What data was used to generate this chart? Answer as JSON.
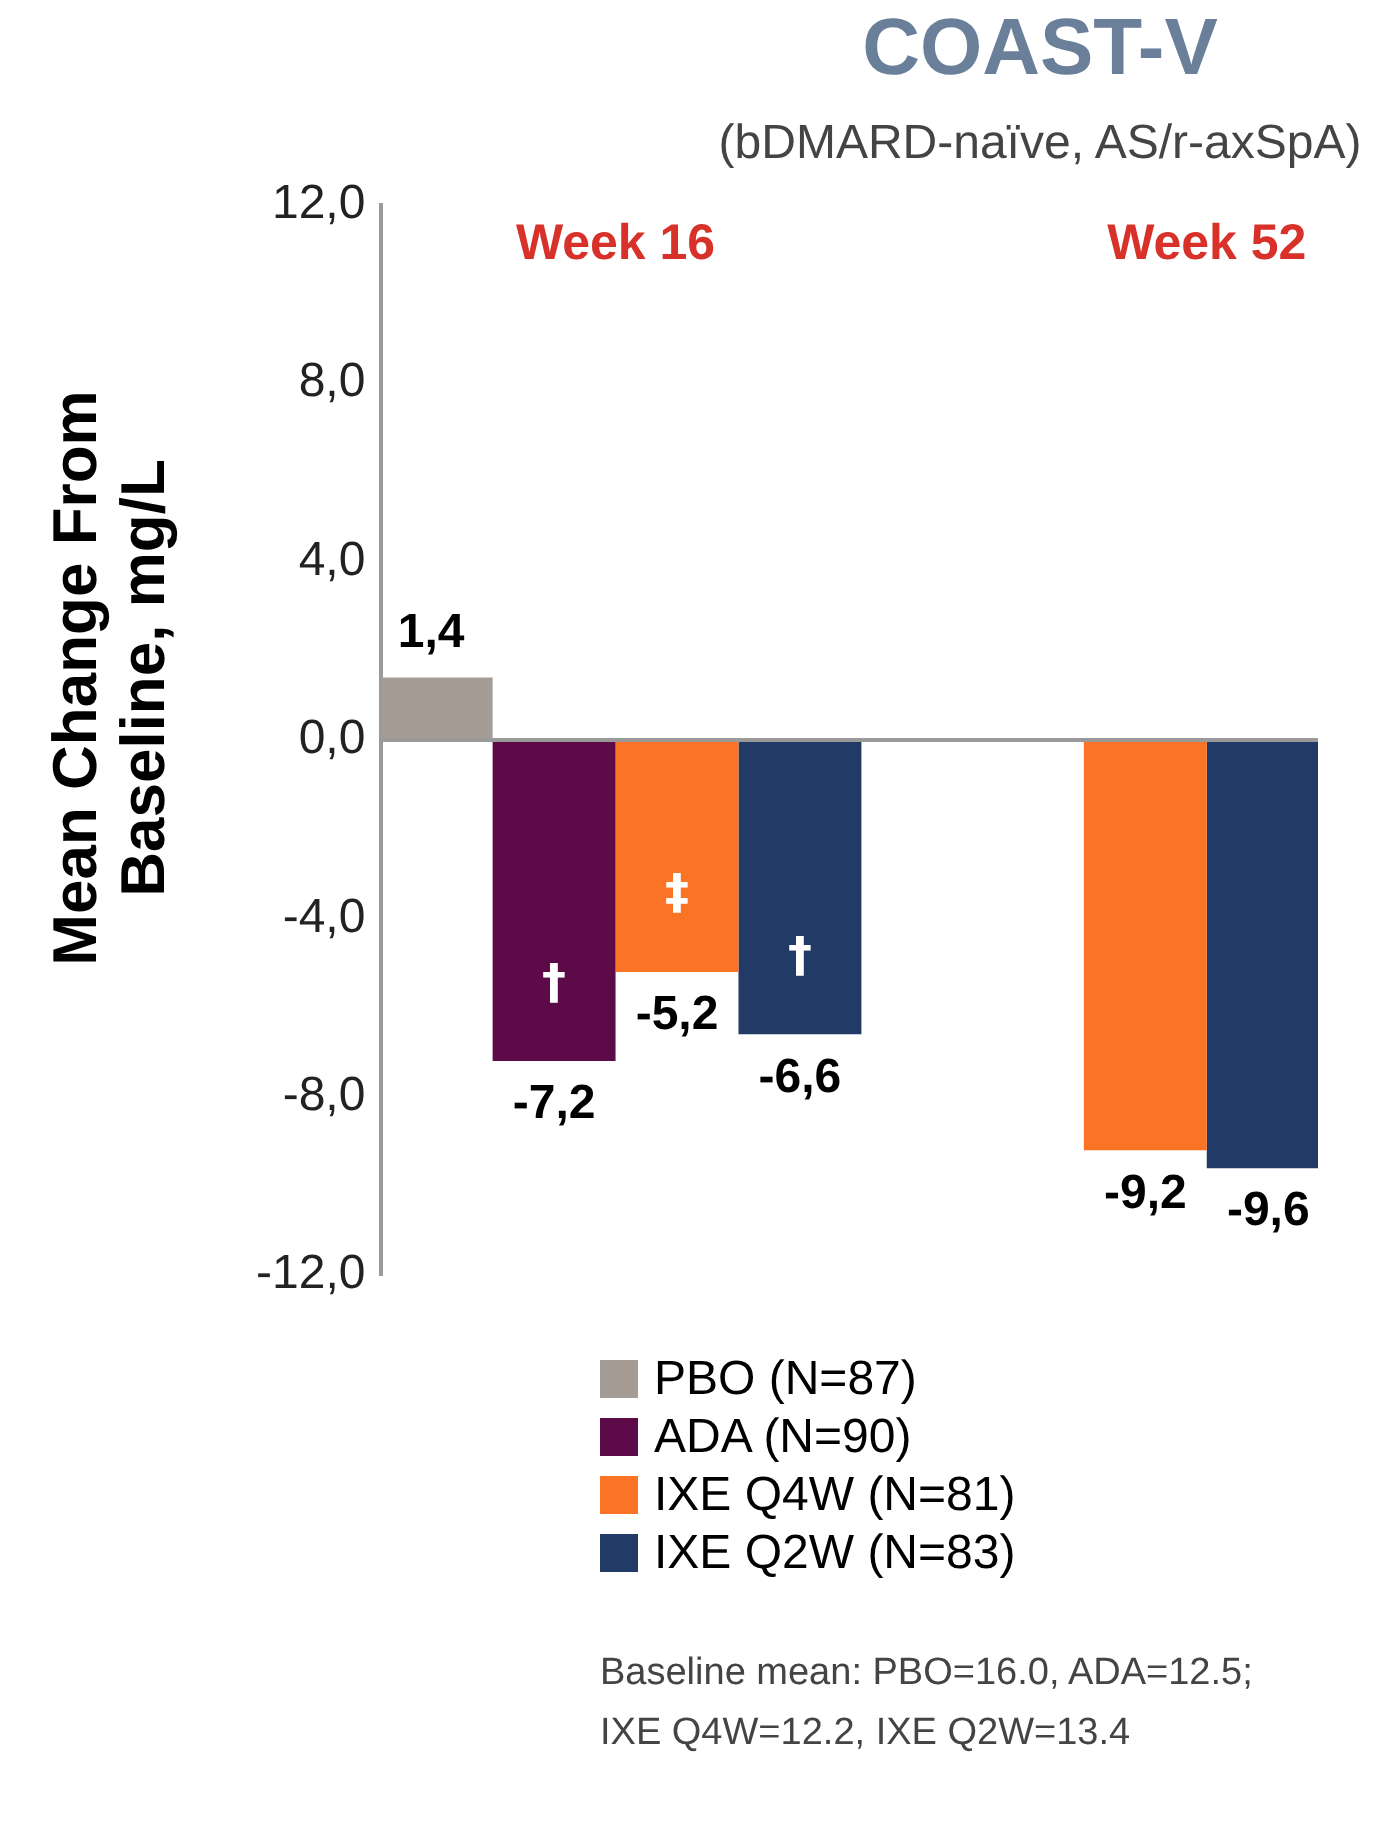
{
  "chart_data": {
    "type": "bar",
    "title": "COAST-V",
    "subtitle": "(bDMARD-naïve, AS/r-axSpA)",
    "ylabel": "Mean Change From Baseline, mg/L",
    "categories": [
      "Week 16",
      "Week 52"
    ],
    "series": [
      {
        "name": "PBO (N=87)",
        "color": "#a59d95",
        "values": [
          1.4,
          null
        ],
        "value_labels": [
          "1,4",
          null
        ]
      },
      {
        "name": "ADA (N=90)",
        "color": "#5c0a48",
        "values": [
          -7.2,
          null
        ],
        "value_labels": [
          "-7,2",
          null
        ]
      },
      {
        "name": "IXE Q4W (N=81)",
        "color": "#fb7324",
        "values": [
          -5.2,
          -9.2
        ],
        "value_labels": [
          "-5,2",
          "-9,2"
        ]
      },
      {
        "name": "IXE Q2W (N=83)",
        "color": "#223b66",
        "values": [
          -6.6,
          -9.6
        ],
        "value_labels": [
          "-6,6",
          "-9,6"
        ]
      }
    ],
    "ylim": [
      -12,
      12
    ],
    "yticks": [
      {
        "value": -12,
        "label": "-12,0"
      },
      {
        "value": -8,
        "label": "-8,0"
      },
      {
        "value": -4,
        "label": "-4,0"
      },
      {
        "value": 0,
        "label": "0,0"
      },
      {
        "value": 4,
        "label": "4,0"
      },
      {
        "value": 8,
        "label": "8,0"
      },
      {
        "value": 12,
        "label": "12,0"
      }
    ],
    "grid": false,
    "legend": "bottom",
    "ref_lines": [
      {
        "axis": "y",
        "value": 0,
        "color": "#9a9a9a"
      }
    ],
    "annotations": [
      "†",
      "‡",
      "†",
      "Baseline mean: PBO=16.0, ADA=12.5; IXE Q4W=12.2, IXE Q2W=13.4"
    ]
  }
}
